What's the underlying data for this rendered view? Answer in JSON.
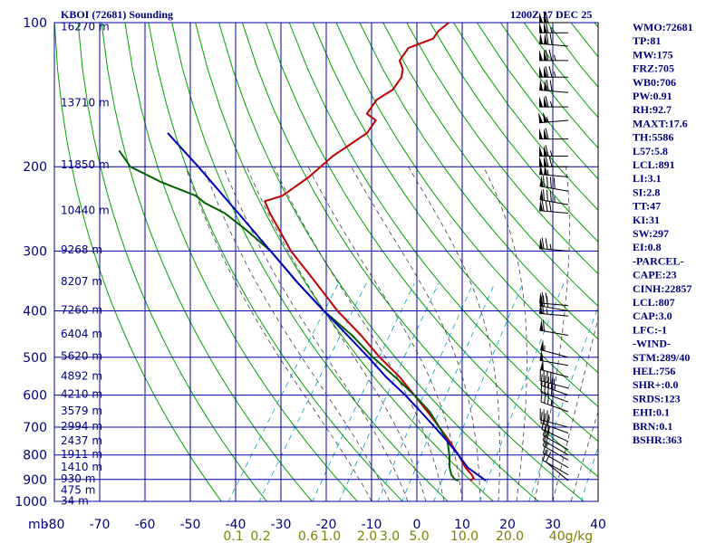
{
  "title_left": "KBOI (72681) Sounding",
  "title_right": "1200Z 17 DEC 25",
  "colors": {
    "grid": "#0000aa",
    "temperature": "#c00000",
    "dewpoint": "#006000",
    "parcel": "#0000c0",
    "dry_adiabat": "#00a000",
    "moist_adiabat": "#404040",
    "mixing_ratio": "#00a0c0",
    "index_text": "#000080",
    "mixing_label": "#808000"
  },
  "chart_data": {
    "type": "line",
    "title": "KBOI (72681) Sounding",
    "subtitle": "1200Z 17 DEC 25",
    "xlabel": "",
    "ylabel": "mb",
    "xlim": [
      -80,
      40
    ],
    "ylim": [
      1000,
      100
    ],
    "y_scale": "log",
    "grid": true,
    "pressure_levels": [
      100,
      200,
      300,
      400,
      500,
      600,
      700,
      800,
      900,
      1000
    ],
    "x_ticks": [
      -80,
      -70,
      -60,
      -50,
      -40,
      -30,
      -20,
      -10,
      0,
      10,
      20,
      30,
      40
    ],
    "x_tick_labels": [
      "-80",
      "-70",
      "-60",
      "-50",
      "-40",
      "-30",
      "-20",
      "-10",
      "0",
      "10",
      "20",
      "30",
      "40"
    ],
    "axis_corner_label": "mb",
    "height_labels": [
      {
        "p": 102,
        "label": "16270 m"
      },
      {
        "p": 147,
        "label": "13710 m"
      },
      {
        "p": 198,
        "label": "11850 m"
      },
      {
        "p": 247,
        "label": "10440 m"
      },
      {
        "p": 298,
        "label": "9268 m"
      },
      {
        "p": 347,
        "label": "8207 m"
      },
      {
        "p": 398,
        "label": "7260 m"
      },
      {
        "p": 447,
        "label": "6404 m"
      },
      {
        "p": 497,
        "label": "5620 m"
      },
      {
        "p": 547,
        "label": "4892 m"
      },
      {
        "p": 597,
        "label": "4210 m"
      },
      {
        "p": 647,
        "label": "3579 m"
      },
      {
        "p": 697,
        "label": "2994 m"
      },
      {
        "p": 747,
        "label": "2437 m"
      },
      {
        "p": 797,
        "label": "1911 m"
      },
      {
        "p": 847,
        "label": "1410 m"
      },
      {
        "p": 897,
        "label": "930 m"
      },
      {
        "p": 947,
        "label": "475 m"
      },
      {
        "p": 997,
        "label": "34 m"
      }
    ],
    "mixing_ratio_labels": [
      {
        "label": "0.1",
        "t": -40.5
      },
      {
        "label": "0.2",
        "t": -34.5
      },
      {
        "label": "0.6",
        "t": -24
      },
      {
        "label": "1.0",
        "t": -19
      },
      {
        "label": "2.0",
        "t": -11
      },
      {
        "label": "3.0",
        "t": -6
      },
      {
        "label": "5.0",
        "t": 0.5
      },
      {
        "label": "10.0",
        "t": 10.5
      },
      {
        "label": "20.0",
        "t": 20.5
      },
      {
        "label": "40g/kg",
        "t": 34
      }
    ],
    "series": [
      {
        "name": "temperature",
        "points": [
          {
            "p": 100,
            "t": -67
          },
          {
            "p": 104,
            "t": -68
          },
          {
            "p": 108,
            "t": -68
          },
          {
            "p": 113,
            "t": -72
          },
          {
            "p": 120,
            "t": -72
          },
          {
            "p": 125,
            "t": -70
          },
          {
            "p": 130,
            "t": -69
          },
          {
            "p": 138,
            "t": -69
          },
          {
            "p": 145,
            "t": -71
          },
          {
            "p": 155,
            "t": -71
          },
          {
            "p": 160,
            "t": -68
          },
          {
            "p": 170,
            "t": -68
          },
          {
            "p": 180,
            "t": -70
          },
          {
            "p": 190,
            "t": -72
          },
          {
            "p": 200,
            "t": -73
          },
          {
            "p": 210,
            "t": -74
          },
          {
            "p": 230,
            "t": -77
          },
          {
            "p": 236,
            "t": -80
          },
          {
            "p": 250,
            "t": -77
          },
          {
            "p": 300,
            "t": -66.5
          },
          {
            "p": 350,
            "t": -56
          },
          {
            "p": 400,
            "t": -47
          },
          {
            "p": 450,
            "t": -38
          },
          {
            "p": 500,
            "t": -30.5
          },
          {
            "p": 550,
            "t": -23
          },
          {
            "p": 600,
            "t": -17
          },
          {
            "p": 650,
            "t": -11.5
          },
          {
            "p": 700,
            "t": -6.5
          },
          {
            "p": 750,
            "t": -2
          },
          {
            "p": 800,
            "t": 2
          },
          {
            "p": 850,
            "t": 5.5
          },
          {
            "p": 880,
            "t": 8
          },
          {
            "p": 895,
            "t": 9
          },
          {
            "p": 905,
            "t": 8.5
          }
        ]
      },
      {
        "name": "dewpoint",
        "points": [
          {
            "p": 185,
            "t": -120
          },
          {
            "p": 200,
            "t": -115
          },
          {
            "p": 215,
            "t": -106
          },
          {
            "p": 230,
            "t": -96
          },
          {
            "p": 238,
            "t": -93
          },
          {
            "p": 250,
            "t": -87
          },
          {
            "p": 270,
            "t": -80
          },
          {
            "p": 300,
            "t": -71
          },
          {
            "p": 350,
            "t": -60
          },
          {
            "p": 400,
            "t": -50
          },
          {
            "p": 450,
            "t": -40
          },
          {
            "p": 500,
            "t": -32
          },
          {
            "p": 550,
            "t": -24
          },
          {
            "p": 600,
            "t": -17
          },
          {
            "p": 650,
            "t": -11
          },
          {
            "p": 700,
            "t": -6.5
          },
          {
            "p": 750,
            "t": -2.5
          },
          {
            "p": 800,
            "t": 0
          },
          {
            "p": 850,
            "t": 2
          },
          {
            "p": 880,
            "t": 3.5
          },
          {
            "p": 900,
            "t": 5
          },
          {
            "p": 905,
            "t": 6
          }
        ]
      },
      {
        "name": "parcel",
        "points": [
          {
            "p": 905,
            "t": 12
          },
          {
            "p": 850,
            "t": 6
          },
          {
            "p": 800,
            "t": 2
          },
          {
            "p": 750,
            "t": -2.5
          },
          {
            "p": 700,
            "t": -7.5
          },
          {
            "p": 650,
            "t": -13
          },
          {
            "p": 600,
            "t": -19
          },
          {
            "p": 550,
            "t": -26
          },
          {
            "p": 500,
            "t": -33
          },
          {
            "p": 450,
            "t": -41
          },
          {
            "p": 400,
            "t": -50
          },
          {
            "p": 350,
            "t": -60
          },
          {
            "p": 300,
            "t": -71
          },
          {
            "p": 250,
            "t": -84
          },
          {
            "p": 200,
            "t": -100
          },
          {
            "p": 170,
            "t": -112
          }
        ]
      }
    ]
  },
  "indices": [
    "WMO:72681",
    "TP:81",
    "MW:175",
    "FRZ:705",
    "WB0:706",
    "PW:0.91",
    "RH:92.7",
    "MAXT:17.6",
    "TH:5586",
    "L57:5.8",
    "LCL:891",
    "LI:3.1",
    "SI:2.8",
    "TT:47",
    "KI:31",
    "SW:297",
    "EI:0.8",
    "-PARCEL-",
    "CAPE:23",
    "CINH:22857",
    "LCL:807",
    "CAP:3.0",
    "LFC:-1",
    "-WIND-",
    "STM:289/40",
    "HEL:756",
    "SHR+:0.0",
    "SRDS:123",
    "EHI:0.1",
    "BRN:0.1",
    "BSHR:363"
  ],
  "wind_barbs": [
    {
      "p": 100,
      "dir": 270,
      "kt": 110
    },
    {
      "p": 105,
      "dir": 270,
      "kt": 115
    },
    {
      "p": 112,
      "dir": 275,
      "kt": 120
    },
    {
      "p": 120,
      "dir": 270,
      "kt": 125
    },
    {
      "p": 130,
      "dir": 270,
      "kt": 125
    },
    {
      "p": 140,
      "dir": 275,
      "kt": 120
    },
    {
      "p": 150,
      "dir": 270,
      "kt": 115
    },
    {
      "p": 160,
      "dir": 265,
      "kt": 105
    },
    {
      "p": 175,
      "dir": 270,
      "kt": 110
    },
    {
      "p": 190,
      "dir": 270,
      "kt": 115
    },
    {
      "p": 200,
      "dir": 270,
      "kt": 120
    },
    {
      "p": 210,
      "dir": 275,
      "kt": 105
    },
    {
      "p": 225,
      "dir": 280,
      "kt": 90
    },
    {
      "p": 240,
      "dir": 280,
      "kt": 85
    },
    {
      "p": 250,
      "dir": 275,
      "kt": 80
    },
    {
      "p": 300,
      "dir": 275,
      "kt": 75
    },
    {
      "p": 390,
      "dir": 275,
      "kt": 70
    },
    {
      "p": 400,
      "dir": 280,
      "kt": 70
    },
    {
      "p": 410,
      "dir": 275,
      "kt": 65
    },
    {
      "p": 450,
      "dir": 280,
      "kt": 60
    },
    {
      "p": 500,
      "dir": 285,
      "kt": 55
    },
    {
      "p": 520,
      "dir": 280,
      "kt": 50
    },
    {
      "p": 550,
      "dir": 285,
      "kt": 50
    },
    {
      "p": 580,
      "dir": 285,
      "kt": 45
    },
    {
      "p": 600,
      "dir": 290,
      "kt": 45
    },
    {
      "p": 620,
      "dir": 290,
      "kt": 40
    },
    {
      "p": 650,
      "dir": 290,
      "kt": 35
    },
    {
      "p": 700,
      "dir": 285,
      "kt": 30
    },
    {
      "p": 720,
      "dir": 290,
      "kt": 30
    },
    {
      "p": 750,
      "dir": 295,
      "kt": 25
    },
    {
      "p": 780,
      "dir": 300,
      "kt": 20
    },
    {
      "p": 800,
      "dir": 300,
      "kt": 20
    },
    {
      "p": 820,
      "dir": 300,
      "kt": 15
    },
    {
      "p": 850,
      "dir": 300,
      "kt": 15
    },
    {
      "p": 880,
      "dir": 300,
      "kt": 10
    },
    {
      "p": 905,
      "dir": 310,
      "kt": 10
    }
  ]
}
